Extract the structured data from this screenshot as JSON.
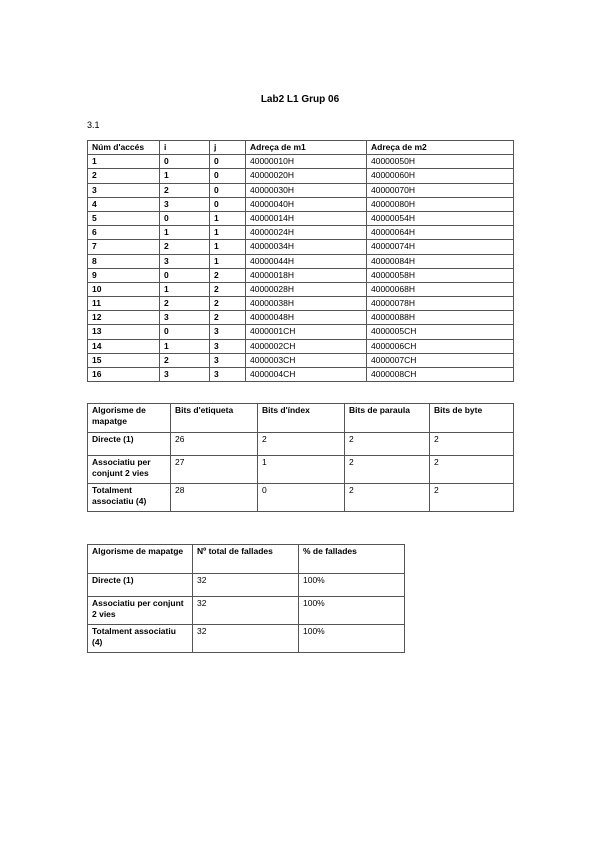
{
  "document": {
    "title": "Lab2 L1 Grup 06",
    "section": "3.1"
  },
  "access_table": {
    "headers": [
      "Núm d'accés",
      "i",
      "j",
      "Adreça de m1",
      "Adreça de m2"
    ],
    "rows": [
      [
        "1",
        "0",
        "0",
        "40000010H",
        "40000050H"
      ],
      [
        "2",
        "1",
        "0",
        "40000020H",
        "40000060H"
      ],
      [
        "3",
        "2",
        "0",
        "40000030H",
        "40000070H"
      ],
      [
        "4",
        "3",
        "0",
        "40000040H",
        "40000080H"
      ],
      [
        "5",
        "0",
        "1",
        "40000014H",
        "40000054H"
      ],
      [
        "6",
        "1",
        "1",
        "40000024H",
        "40000064H"
      ],
      [
        "7",
        "2",
        "1",
        "40000034H",
        "40000074H"
      ],
      [
        "8",
        "3",
        "1",
        "40000044H",
        "40000084H"
      ],
      [
        "9",
        "0",
        "2",
        "40000018H",
        "40000058H"
      ],
      [
        "10",
        "1",
        "2",
        "40000028H",
        "40000068H"
      ],
      [
        "11",
        "2",
        "2",
        "40000038H",
        "40000078H"
      ],
      [
        "12",
        "3",
        "2",
        "40000048H",
        "40000088H"
      ],
      [
        "13",
        "0",
        "3",
        "4000001CH",
        "4000005CH"
      ],
      [
        "14",
        "1",
        "3",
        "4000002CH",
        "4000006CH"
      ],
      [
        "15",
        "2",
        "3",
        "4000003CH",
        "4000007CH"
      ],
      [
        "16",
        "3",
        "3",
        "4000004CH",
        "4000008CH"
      ]
    ]
  },
  "bits_table": {
    "headers": [
      "Algorisme de mapatge",
      "Bits d'etiqueta",
      "Bits d'índex",
      "Bits de paraula",
      "Bits de byte"
    ],
    "rows": [
      [
        "Directe (1)",
        "26",
        "2",
        "2",
        "2"
      ],
      [
        "Associatiu per conjunt 2 vies",
        "27",
        "1",
        "2",
        "2"
      ],
      [
        "Totalment associatiu (4)",
        "28",
        "0",
        "2",
        "2"
      ]
    ]
  },
  "miss_table": {
    "headers": [
      "Algorisme de mapatge",
      "Nº total de fallades",
      "% de fallades"
    ],
    "rows": [
      [
        "Directe (1)",
        "32",
        "100%"
      ],
      [
        "Associatiu per conjunt 2 vies",
        "32",
        "100%"
      ],
      [
        "Totalment associatiu (4)",
        "32",
        "100%"
      ]
    ]
  }
}
